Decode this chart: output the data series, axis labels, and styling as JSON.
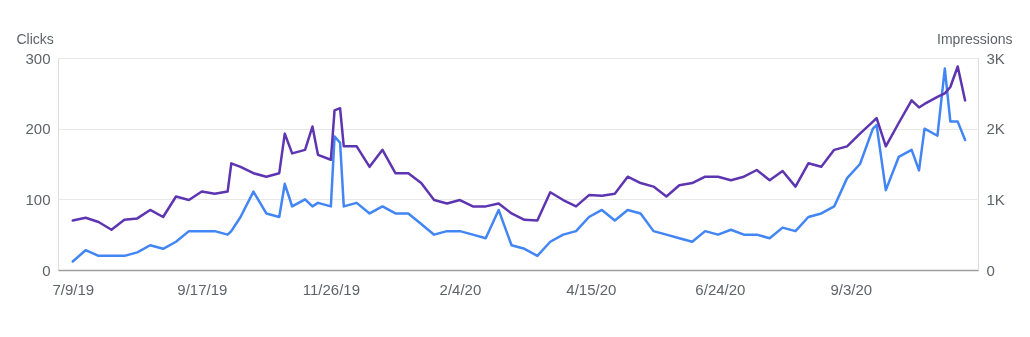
{
  "chart_data": {
    "type": "line",
    "ylabel": "Clicks",
    "y2label": "Impressions",
    "xlim": [
      "2019-07-01",
      "2020-11-11"
    ],
    "xticks": [
      {
        "value": "2019-07-09",
        "label": "7/9/19"
      },
      {
        "value": "2019-09-17",
        "label": "9/17/19"
      },
      {
        "value": "2019-11-26",
        "label": "11/26/19"
      },
      {
        "value": "2020-02-04",
        "label": "2/4/20"
      },
      {
        "value": "2020-04-15",
        "label": "4/15/20"
      },
      {
        "value": "2020-06-24",
        "label": "6/24/20"
      },
      {
        "value": "2020-09-03",
        "label": "9/3/20"
      }
    ],
    "ylim": [
      0,
      300
    ],
    "yticks": [
      0,
      100,
      200,
      300
    ],
    "y2lim": [
      0,
      3000
    ],
    "y2ticks": [
      {
        "value": 0,
        "label": "0"
      },
      {
        "value": 1000,
        "label": "1K"
      },
      {
        "value": 2000,
        "label": "2K"
      },
      {
        "value": 3000,
        "label": "3K"
      }
    ],
    "grid": "y",
    "marker": "none",
    "line_style": "solid",
    "x": [
      "2019-07-09",
      "2019-07-16",
      "2019-07-23",
      "2019-07-30",
      "2019-08-06",
      "2019-08-13",
      "2019-08-20",
      "2019-08-27",
      "2019-09-03",
      "2019-09-10",
      "2019-09-17",
      "2019-09-24",
      "2019-10-01",
      "2019-10-03",
      "2019-10-08",
      "2019-10-15",
      "2019-10-22",
      "2019-10-29",
      "2019-11-01",
      "2019-11-05",
      "2019-11-12",
      "2019-11-16",
      "2019-11-19",
      "2019-11-26",
      "2019-11-28",
      "2019-12-01",
      "2019-12-03",
      "2019-12-10",
      "2019-12-17",
      "2019-12-24",
      "2019-12-31",
      "2020-01-07",
      "2020-01-14",
      "2020-01-21",
      "2020-01-28",
      "2020-02-04",
      "2020-02-11",
      "2020-02-18",
      "2020-02-25",
      "2020-03-03",
      "2020-03-10",
      "2020-03-17",
      "2020-03-24",
      "2020-03-31",
      "2020-04-07",
      "2020-04-14",
      "2020-04-21",
      "2020-04-28",
      "2020-05-05",
      "2020-05-12",
      "2020-05-19",
      "2020-05-26",
      "2020-06-02",
      "2020-06-09",
      "2020-06-16",
      "2020-06-23",
      "2020-06-30",
      "2020-07-07",
      "2020-07-14",
      "2020-07-21",
      "2020-07-28",
      "2020-08-04",
      "2020-08-11",
      "2020-08-18",
      "2020-08-25",
      "2020-09-01",
      "2020-09-08",
      "2020-09-15",
      "2020-09-17",
      "2020-09-22",
      "2020-09-29",
      "2020-10-06",
      "2020-10-10",
      "2020-10-13",
      "2020-10-20",
      "2020-10-24",
      "2020-10-27",
      "2020-10-31",
      "2020-11-04"
    ],
    "series": [
      {
        "color": "#4285f4",
        "axis": "y",
        "values": [
          12,
          28,
          20,
          20,
          20,
          25,
          35,
          30,
          40,
          55,
          55,
          55,
          50,
          55,
          75,
          111,
          80,
          75,
          122,
          90,
          100,
          90,
          95,
          90,
          189,
          180,
          90,
          95,
          80,
          90,
          80,
          80,
          65,
          50,
          55,
          55,
          50,
          45,
          85,
          35,
          30,
          20,
          40,
          50,
          55,
          75,
          85,
          70,
          85,
          80,
          55,
          50,
          45,
          40,
          55,
          50,
          57,
          50,
          50,
          45,
          60,
          55,
          75,
          80,
          90,
          130,
          150,
          200,
          205,
          113,
          160,
          170,
          141,
          200,
          190,
          285,
          210,
          210,
          184
        ]
      },
      {
        "color": "#5e35b1",
        "axis": "y2",
        "values": [
          700,
          740,
          680,
          570,
          710,
          730,
          850,
          750,
          1040,
          990,
          1110,
          1080,
          1110,
          1510,
          1460,
          1370,
          1320,
          1370,
          1930,
          1650,
          1700,
          2030,
          1630,
          1560,
          2260,
          2290,
          1750,
          1750,
          1460,
          1700,
          1370,
          1370,
          1230,
          990,
          940,
          990,
          900,
          900,
          940,
          800,
          710,
          700,
          1100,
          990,
          900,
          1060,
          1050,
          1080,
          1320,
          1230,
          1180,
          1040,
          1200,
          1230,
          1320,
          1320,
          1270,
          1320,
          1415,
          1270,
          1400,
          1180,
          1510,
          1460,
          1700,
          1750,
          1930,
          2100,
          2150,
          1750,
          2080,
          2400,
          2300,
          2350,
          2450,
          2500,
          2590,
          2880,
          2400
        ]
      }
    ]
  }
}
